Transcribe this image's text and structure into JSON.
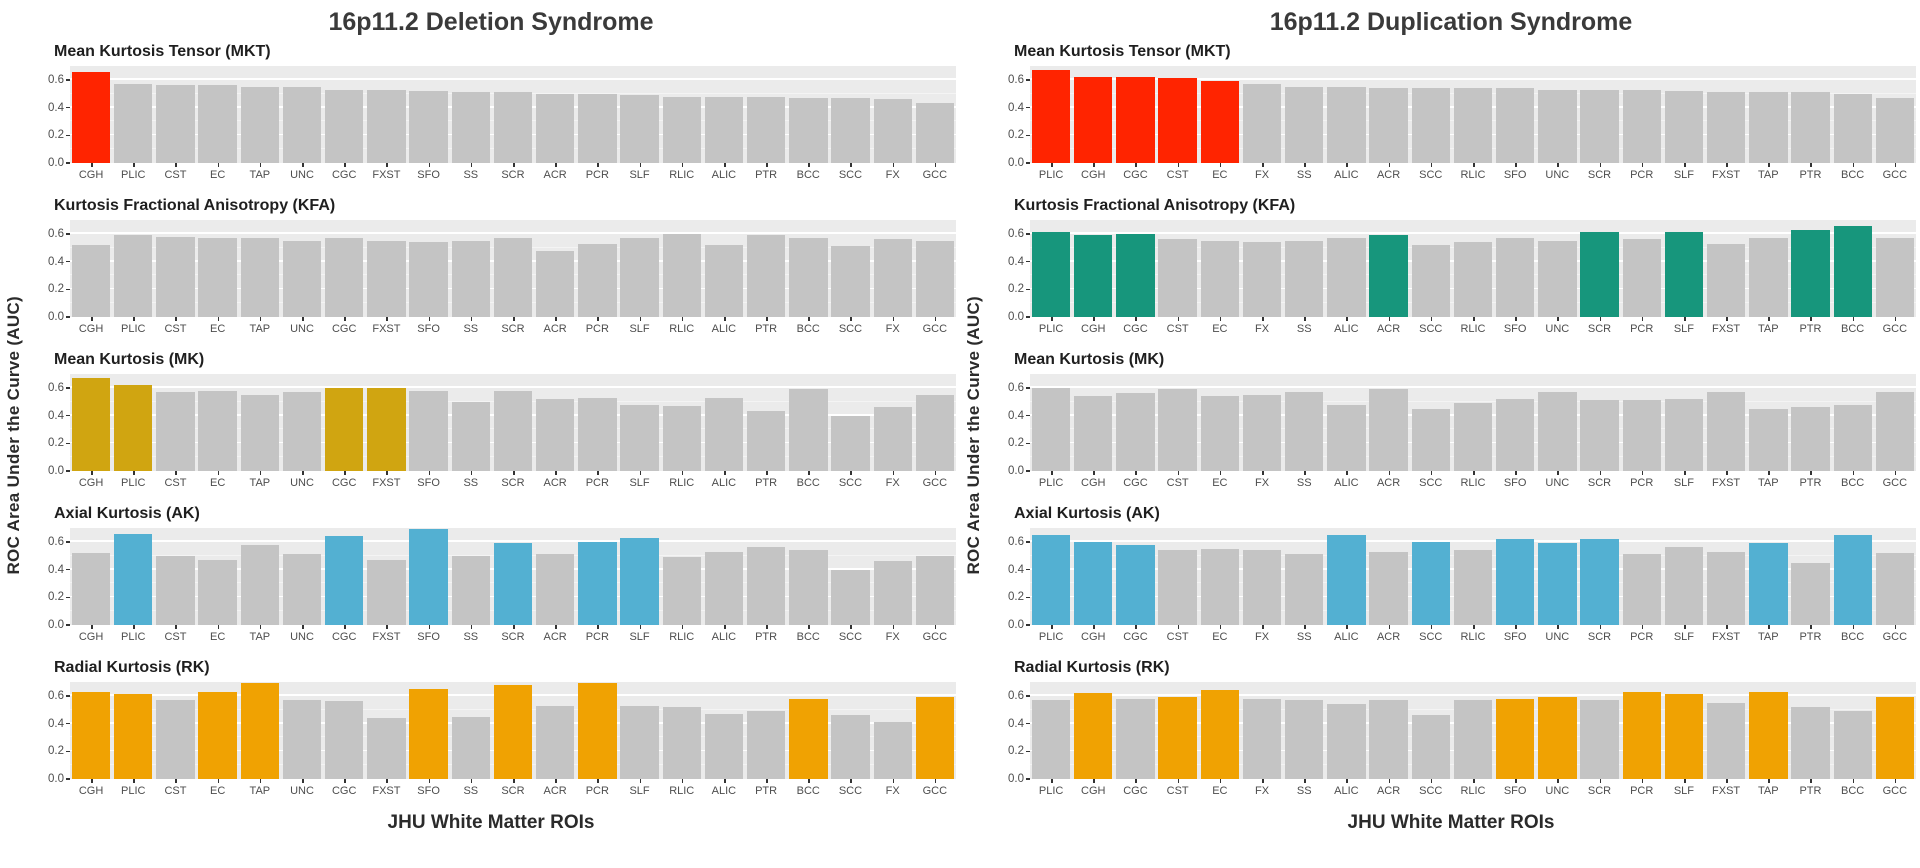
{
  "colors": {
    "bar_gray": "#C4C4C4",
    "panel_background": "#EBEBEB",
    "gridline": "#FFFFFF",
    "mkt_red": "#FF2400",
    "kfa_teal": "#17967C",
    "mk_gold": "#D0A511",
    "ak_blue": "#53B0D2",
    "rk_orange": "#F0A202"
  },
  "chart_data": [
    {
      "type": "bar",
      "title": "16p11.2 Deletion Syndrome",
      "ylabel": "ROC Area Under the Curve (AUC)",
      "xlabel": "JHU White Matter ROIs",
      "ylim": [
        0,
        0.7
      ],
      "yticks": [
        "0.0",
        "0.2",
        "0.4",
        "0.6"
      ],
      "grid": true,
      "legend": "none",
      "categories": [
        "CGH",
        "PLIC",
        "CST",
        "EC",
        "TAP",
        "UNC",
        "CGC",
        "FXST",
        "SFO",
        "SS",
        "SCR",
        "ACR",
        "PCR",
        "SLF",
        "RLIC",
        "ALIC",
        "PTR",
        "BCC",
        "SCC",
        "FX",
        "GCC"
      ],
      "panels": [
        {
          "label": "Mean Kurtosis Tensor (MKT)",
          "highlight_color": "#FF2400",
          "values": [
            0.66,
            0.57,
            0.56,
            0.56,
            0.55,
            0.55,
            0.53,
            0.53,
            0.52,
            0.51,
            0.51,
            0.5,
            0.5,
            0.49,
            0.48,
            0.48,
            0.48,
            0.47,
            0.47,
            0.46,
            0.43
          ],
          "highlighted": [
            "CGH"
          ]
        },
        {
          "label": "Kurtosis Fractional Anisotropy (KFA)",
          "highlight_color": "#17967C",
          "values": [
            0.52,
            0.59,
            0.58,
            0.57,
            0.57,
            0.55,
            0.57,
            0.55,
            0.54,
            0.55,
            0.57,
            0.48,
            0.53,
            0.57,
            0.6,
            0.52,
            0.59,
            0.57,
            0.51,
            0.56,
            0.55
          ],
          "highlighted": []
        },
        {
          "label": "Mean Kurtosis (MK)",
          "highlight_color": "#D0A511",
          "values": [
            0.67,
            0.62,
            0.57,
            0.58,
            0.55,
            0.57,
            0.6,
            0.6,
            0.58,
            0.5,
            0.58,
            0.52,
            0.53,
            0.48,
            0.47,
            0.53,
            0.43,
            0.59,
            0.4,
            0.46,
            0.55
          ],
          "highlighted": [
            "CGH",
            "PLIC",
            "CGC",
            "FXST"
          ]
        },
        {
          "label": "Axial Kurtosis (AK)",
          "highlight_color": "#53B0D2",
          "values": [
            0.52,
            0.66,
            0.5,
            0.47,
            0.58,
            0.51,
            0.64,
            0.47,
            0.69,
            0.5,
            0.59,
            0.51,
            0.6,
            0.63,
            0.49,
            0.53,
            0.56,
            0.54,
            0.4,
            0.46,
            0.5
          ],
          "highlighted": [
            "PLIC",
            "CGC",
            "SFO",
            "SCR",
            "PCR",
            "SLF"
          ]
        },
        {
          "label": "Radial Kurtosis (RK)",
          "highlight_color": "#F0A202",
          "values": [
            0.63,
            0.61,
            0.57,
            0.63,
            0.69,
            0.57,
            0.56,
            0.44,
            0.65,
            0.45,
            0.68,
            0.53,
            0.69,
            0.53,
            0.52,
            0.47,
            0.49,
            0.58,
            0.46,
            0.41,
            0.59
          ],
          "highlighted": [
            "CGH",
            "PLIC",
            "EC",
            "TAP",
            "SFO",
            "SCR",
            "PCR",
            "BCC",
            "GCC"
          ]
        }
      ]
    },
    {
      "type": "bar",
      "title": "16p11.2 Duplication Syndrome",
      "ylabel": "ROC Area Under the Curve (AUC)",
      "xlabel": "JHU White Matter ROIs",
      "ylim": [
        0,
        0.7
      ],
      "yticks": [
        "0.0",
        "0.2",
        "0.4",
        "0.6"
      ],
      "grid": true,
      "legend": "none",
      "categories": [
        "PLIC",
        "CGH",
        "CGC",
        "CST",
        "EC",
        "FX",
        "SS",
        "ALIC",
        "ACR",
        "SCC",
        "RLIC",
        "SFO",
        "UNC",
        "SCR",
        "PCR",
        "SLF",
        "FXST",
        "TAP",
        "PTR",
        "BCC",
        "GCC"
      ],
      "panels": [
        {
          "label": "Mean Kurtosis Tensor (MKT)",
          "highlight_color": "#FF2400",
          "values": [
            0.67,
            0.62,
            0.62,
            0.61,
            0.59,
            0.57,
            0.55,
            0.55,
            0.54,
            0.54,
            0.54,
            0.54,
            0.53,
            0.53,
            0.53,
            0.52,
            0.51,
            0.51,
            0.51,
            0.5,
            0.47
          ],
          "highlighted": [
            "PLIC",
            "CGH",
            "CGC",
            "CST",
            "EC"
          ]
        },
        {
          "label": "Kurtosis Fractional Anisotropy (KFA)",
          "highlight_color": "#17967C",
          "values": [
            0.61,
            0.59,
            0.6,
            0.56,
            0.55,
            0.54,
            0.55,
            0.57,
            0.59,
            0.52,
            0.54,
            0.57,
            0.55,
            0.61,
            0.56,
            0.61,
            0.53,
            0.57,
            0.63,
            0.66,
            0.57
          ],
          "highlighted": [
            "PLIC",
            "CGH",
            "CGC",
            "ACR",
            "SCR",
            "SLF",
            "PTR",
            "BCC"
          ]
        },
        {
          "label": "Mean Kurtosis (MK)",
          "highlight_color": "#D0A511",
          "values": [
            0.6,
            0.54,
            0.56,
            0.59,
            0.54,
            0.55,
            0.57,
            0.48,
            0.59,
            0.45,
            0.49,
            0.52,
            0.57,
            0.51,
            0.51,
            0.52,
            0.57,
            0.45,
            0.46,
            0.48,
            0.57
          ],
          "highlighted": []
        },
        {
          "label": "Axial Kurtosis (AK)",
          "highlight_color": "#53B0D2",
          "values": [
            0.65,
            0.6,
            0.58,
            0.54,
            0.55,
            0.54,
            0.51,
            0.65,
            0.53,
            0.6,
            0.54,
            0.62,
            0.59,
            0.62,
            0.51,
            0.56,
            0.53,
            0.59,
            0.45,
            0.65,
            0.52
          ],
          "highlighted": [
            "PLIC",
            "CGH",
            "CGC",
            "ALIC",
            "SCC",
            "SFO",
            "UNC",
            "SCR",
            "TAP",
            "BCC"
          ]
        },
        {
          "label": "Radial Kurtosis (RK)",
          "highlight_color": "#F0A202",
          "values": [
            0.57,
            0.62,
            0.58,
            0.59,
            0.64,
            0.58,
            0.57,
            0.54,
            0.57,
            0.46,
            0.57,
            0.58,
            0.59,
            0.57,
            0.63,
            0.61,
            0.55,
            0.63,
            0.52,
            0.49,
            0.59
          ],
          "highlighted": [
            "CGH",
            "CST",
            "EC",
            "SFO",
            "UNC",
            "PCR",
            "SLF",
            "TAP",
            "GCC"
          ]
        }
      ]
    }
  ]
}
